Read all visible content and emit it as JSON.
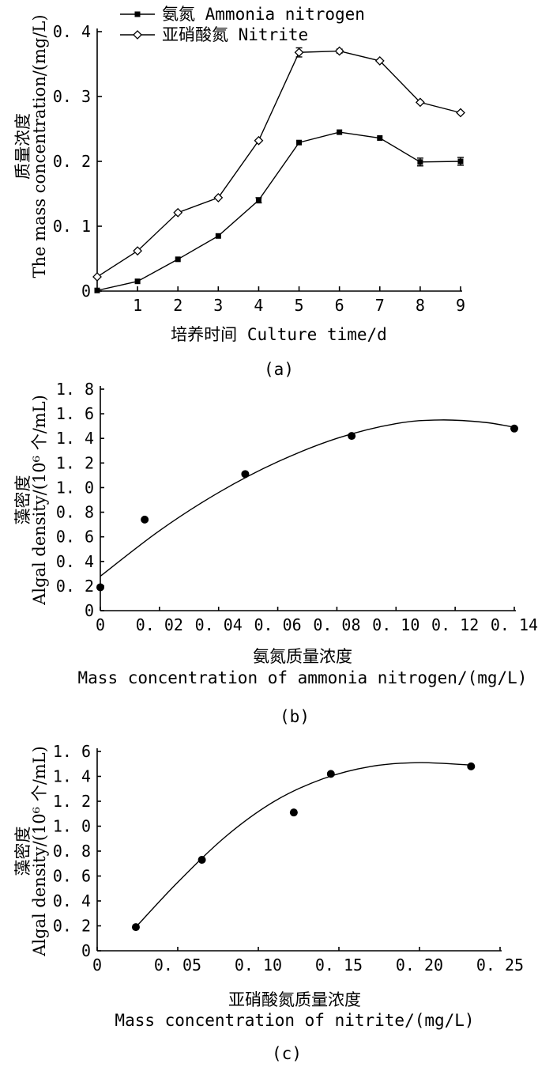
{
  "chart_data": [
    {
      "type": "line",
      "caption": "(a)",
      "xlabel": "培养时间 Culture time/d",
      "ylabel_cn": "质量浓度",
      "ylabel_en": "The mass concentration/(mg/L)",
      "xlim": [
        0,
        9
      ],
      "ylim": [
        0,
        0.4
      ],
      "xticks": [
        1,
        2,
        3,
        4,
        5,
        6,
        7,
        8,
        9
      ],
      "xtick_labels": [
        "1",
        "2",
        "3",
        "4",
        "5",
        "6",
        "7",
        "8",
        "9"
      ],
      "yticks": [
        0,
        0.1,
        0.2,
        0.3,
        0.4
      ],
      "ytick_labels": [
        "0",
        "0. 1",
        "0. 2",
        "0. 3",
        "0. 4"
      ],
      "legend_position": "top-left",
      "x": [
        0,
        1,
        2,
        3,
        4,
        5,
        6,
        7,
        8,
        9
      ],
      "series": [
        {
          "name": "氨氮 Ammonia nitrogen",
          "marker": "filled-square",
          "values": [
            0.001,
            0.015,
            0.049,
            0.085,
            0.14,
            0.229,
            0.245,
            0.236,
            0.199,
            0.2
          ],
          "errors": [
            0,
            0,
            0,
            0,
            0.004,
            0,
            0,
            0,
            0.006,
            0.006
          ]
        },
        {
          "name": "亚硝酸氮 Nitrite",
          "marker": "open-diamond",
          "values": [
            0.022,
            0.062,
            0.121,
            0.144,
            0.232,
            0.368,
            0.37,
            0.355,
            0.291,
            0.275
          ],
          "errors": [
            0,
            0,
            0,
            0,
            0,
            0.007,
            0.003,
            0,
            0,
            0
          ]
        }
      ]
    },
    {
      "type": "scatter",
      "caption": "(b)",
      "xlabel_cn": "氨氮质量浓度",
      "xlabel_en": "Mass concentration of ammonia nitrogen/(mg/L)",
      "ylabel_cn": "藻密度",
      "ylabel_en": "Algal density/(10⁶ 个/mL)",
      "xlim": [
        0,
        0.14
      ],
      "ylim": [
        0,
        1.8
      ],
      "xticks": [
        0,
        0.02,
        0.04,
        0.06,
        0.08,
        0.1,
        0.12,
        0.14
      ],
      "xtick_labels": [
        "0",
        "0. 02",
        "0. 04",
        "0. 06",
        "0. 08",
        "0. 10",
        "0. 12",
        "0. 14"
      ],
      "yticks": [
        0,
        0.2,
        0.4,
        0.6,
        0.8,
        1.0,
        1.2,
        1.4,
        1.6,
        1.8
      ],
      "ytick_labels": [
        "0",
        "0. 2",
        "0. 4",
        "0. 6",
        "0. 8",
        "1. 0",
        "1. 2",
        "1. 4",
        "1. 6",
        "1. 8"
      ],
      "points": [
        [
          0.0,
          0.19
        ],
        [
          0.015,
          0.74
        ],
        [
          0.049,
          1.11
        ],
        [
          0.085,
          1.42
        ],
        [
          0.14,
          1.48
        ]
      ],
      "fit_curve": [
        [
          0.0,
          0.28
        ],
        [
          0.02,
          0.65
        ],
        [
          0.04,
          0.96
        ],
        [
          0.06,
          1.21
        ],
        [
          0.08,
          1.4
        ],
        [
          0.1,
          1.52
        ],
        [
          0.115,
          1.55
        ],
        [
          0.13,
          1.53
        ],
        [
          0.14,
          1.49
        ]
      ]
    },
    {
      "type": "scatter",
      "caption": "(c)",
      "xlabel_cn": "亚硝酸氮质量浓度",
      "xlabel_en": "Mass concentration of nitrite/(mg/L)",
      "ylabel_cn": "藻密度",
      "ylabel_en": "Algal density/(10⁶ 个/mL)",
      "xlim": [
        0,
        0.25
      ],
      "ylim": [
        0,
        1.6
      ],
      "xticks": [
        0,
        0.05,
        0.1,
        0.15,
        0.2,
        0.25
      ],
      "xtick_labels": [
        "0",
        "0. 05",
        "0. 10",
        "0. 15",
        "0. 20",
        "0. 25"
      ],
      "yticks": [
        0,
        0.2,
        0.4,
        0.6,
        0.8,
        1.0,
        1.2,
        1.4,
        1.6
      ],
      "ytick_labels": [
        "0",
        "0. 2",
        "0. 4",
        "0. 6",
        "0. 8",
        "1. 0",
        "1. 2",
        "1. 4",
        "1. 6"
      ],
      "points": [
        [
          0.024,
          0.19
        ],
        [
          0.065,
          0.73
        ],
        [
          0.122,
          1.11
        ],
        [
          0.145,
          1.42
        ],
        [
          0.232,
          1.48
        ]
      ],
      "fit_curve": [
        [
          0.024,
          0.19
        ],
        [
          0.05,
          0.55
        ],
        [
          0.08,
          0.92
        ],
        [
          0.11,
          1.2
        ],
        [
          0.14,
          1.38
        ],
        [
          0.17,
          1.48
        ],
        [
          0.2,
          1.51
        ],
        [
          0.232,
          1.49
        ]
      ]
    }
  ]
}
